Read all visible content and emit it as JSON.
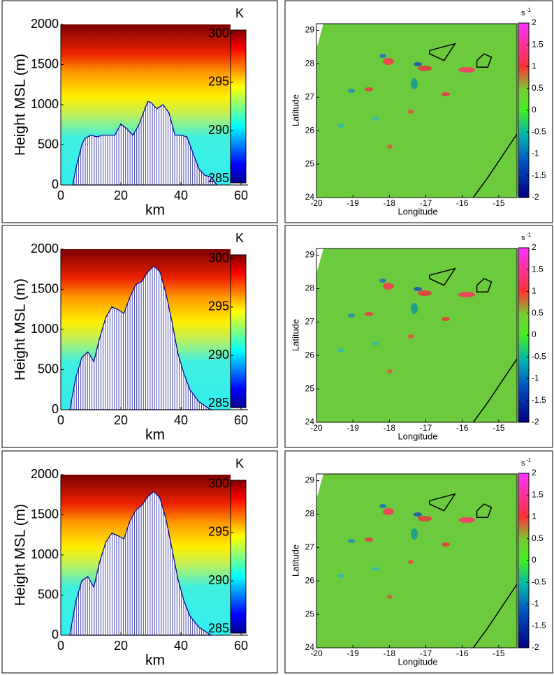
{
  "chart_data": [
    {
      "type": "area",
      "xlabel": "km",
      "ylabel": "Height MSL (m)",
      "x": [
        4,
        5,
        7,
        8,
        10,
        12,
        14,
        16,
        18,
        20,
        22,
        24,
        26,
        28,
        29,
        30,
        32,
        34,
        36,
        38,
        40,
        42,
        44,
        46,
        48,
        50,
        52
      ],
      "values": [
        0,
        200,
        500,
        580,
        620,
        600,
        620,
        620,
        620,
        760,
        700,
        620,
        750,
        950,
        1040,
        1030,
        950,
        1000,
        900,
        620,
        620,
        600,
        400,
        200,
        120,
        100,
        0
      ],
      "color": "#00008b",
      "xlim": [
        0,
        60
      ],
      "xticks": [
        0,
        20,
        40,
        60
      ],
      "ylim": [
        0,
        2000
      ],
      "yticks": [
        0,
        500,
        1000,
        1500,
        2000
      ],
      "colorbar": {
        "label": "K",
        "lim": [
          284.6,
          300.4
        ],
        "ticks": [
          285,
          290,
          295,
          300
        ]
      }
    },
    {
      "type": "map",
      "xlabel": "Longitude",
      "ylabel": "Latitude",
      "xlim": [
        -20,
        -14.5
      ],
      "xticks": [
        -20,
        -19,
        -18,
        -17,
        -16,
        -15
      ],
      "ylim": [
        24,
        29.2
      ],
      "yticks": [
        24,
        25,
        26,
        27,
        28,
        29
      ],
      "colorbar": {
        "label": "s",
        "label_exp": "-1",
        "lim": [
          -2,
          2
        ],
        "ticks": [
          -2,
          -1.5,
          -1,
          -0.5,
          0,
          0.5,
          1,
          1.5,
          2
        ]
      },
      "lines": [
        {
          "x": [
            -15.7,
            -15.3,
            -14.5
          ],
          "y": [
            24,
            24.6,
            25.9
          ]
        },
        {
          "x": [
            -16.9,
            -16.2,
            -16.5,
            -16.9,
            -16.9
          ],
          "y": [
            28.4,
            28.6,
            28.1,
            28.3,
            28.4
          ]
        },
        {
          "x": [
            -15.6,
            -15.4,
            -15.2,
            -15.3,
            -15.6,
            -15.6
          ],
          "y": [
            28.1,
            28.3,
            28.2,
            27.9,
            27.9,
            28.1
          ]
        }
      ]
    },
    {
      "type": "area",
      "xlabel": "km",
      "ylabel": "Height MSL (m)",
      "x": [
        3,
        5,
        7,
        9,
        11,
        13,
        15,
        17,
        19,
        21,
        23,
        25,
        27,
        29,
        31,
        33,
        35,
        37,
        39,
        41,
        43,
        46,
        50
      ],
      "values": [
        0,
        400,
        650,
        720,
        600,
        900,
        1150,
        1280,
        1250,
        1200,
        1400,
        1560,
        1600,
        1720,
        1790,
        1720,
        1450,
        1100,
        700,
        450,
        250,
        100,
        0
      ],
      "color": "#00008b",
      "xlim": [
        0,
        60
      ],
      "xticks": [
        0,
        20,
        40,
        60
      ],
      "ylim": [
        0,
        2000
      ],
      "yticks": [
        0,
        500,
        1000,
        1500,
        2000
      ],
      "colorbar": {
        "label": "K",
        "lim": [
          284.6,
          300.4
        ],
        "ticks": [
          285,
          290,
          295,
          300
        ]
      }
    },
    {
      "type": "map",
      "xlabel": "Longitude",
      "ylabel": "Latitude",
      "xlim": [
        -20,
        -14.5
      ],
      "xticks": [
        -20,
        -19,
        -18,
        -17,
        -16,
        -15
      ],
      "ylim": [
        24,
        29.2
      ],
      "yticks": [
        24,
        25,
        26,
        27,
        28,
        29
      ],
      "colorbar": {
        "label": "s",
        "label_exp": "-1",
        "lim": [
          -2,
          2
        ],
        "ticks": [
          -2,
          -1.5,
          -1,
          -0.5,
          0,
          0.5,
          1,
          1.5,
          2
        ]
      },
      "lines": [
        {
          "x": [
            -15.7,
            -15.3,
            -14.5
          ],
          "y": [
            24,
            24.6,
            25.9
          ]
        },
        {
          "x": [
            -16.9,
            -16.2,
            -16.5,
            -16.9,
            -16.9
          ],
          "y": [
            28.4,
            28.6,
            28.1,
            28.3,
            28.4
          ]
        },
        {
          "x": [
            -15.6,
            -15.4,
            -15.2,
            -15.3,
            -15.6,
            -15.6
          ],
          "y": [
            28.1,
            28.3,
            28.2,
            27.9,
            27.9,
            28.1
          ]
        }
      ]
    },
    {
      "type": "area",
      "xlabel": "km",
      "ylabel": "Height MSL (m)",
      "x": [
        3,
        5,
        7,
        9,
        11,
        13,
        15,
        17,
        19,
        21,
        23,
        25,
        27,
        29,
        31,
        33,
        35,
        37,
        39,
        41,
        43,
        46,
        50
      ],
      "values": [
        0,
        420,
        680,
        730,
        600,
        920,
        1160,
        1270,
        1240,
        1200,
        1420,
        1560,
        1620,
        1730,
        1790,
        1710,
        1450,
        1080,
        700,
        430,
        240,
        100,
        0
      ],
      "color": "#00008b",
      "xlim": [
        0,
        60
      ],
      "xticks": [
        0,
        20,
        40,
        60
      ],
      "ylim": [
        0,
        2000
      ],
      "yticks": [
        0,
        500,
        1000,
        1500,
        2000
      ],
      "colorbar": {
        "label": "K",
        "lim": [
          284.6,
          300.4
        ],
        "ticks": [
          285,
          290,
          295,
          300
        ]
      }
    },
    {
      "type": "map",
      "xlabel": "Longitude",
      "ylabel": "Latitude",
      "xlim": [
        -20,
        -14.5
      ],
      "xticks": [
        -20,
        -19,
        -18,
        -17,
        -16,
        -15
      ],
      "ylim": [
        24,
        29.2
      ],
      "yticks": [
        24,
        25,
        26,
        27,
        28,
        29
      ],
      "colorbar": {
        "label": "s",
        "label_exp": "-1",
        "lim": [
          -2,
          2
        ],
        "ticks": [
          -2,
          -1.5,
          -1,
          -0.5,
          0,
          0.5,
          1,
          1.5,
          2
        ]
      },
      "lines": [
        {
          "x": [
            -15.7,
            -15.3,
            -14.5
          ],
          "y": [
            24,
            24.6,
            25.9
          ]
        },
        {
          "x": [
            -16.9,
            -16.2,
            -16.5,
            -16.9,
            -16.9
          ],
          "y": [
            28.4,
            28.6,
            28.1,
            28.3,
            28.4
          ]
        },
        {
          "x": [
            -15.6,
            -15.4,
            -15.2,
            -15.3,
            -15.6,
            -15.6
          ],
          "y": [
            28.1,
            28.3,
            28.2,
            27.9,
            27.9,
            28.1
          ]
        }
      ]
    }
  ]
}
